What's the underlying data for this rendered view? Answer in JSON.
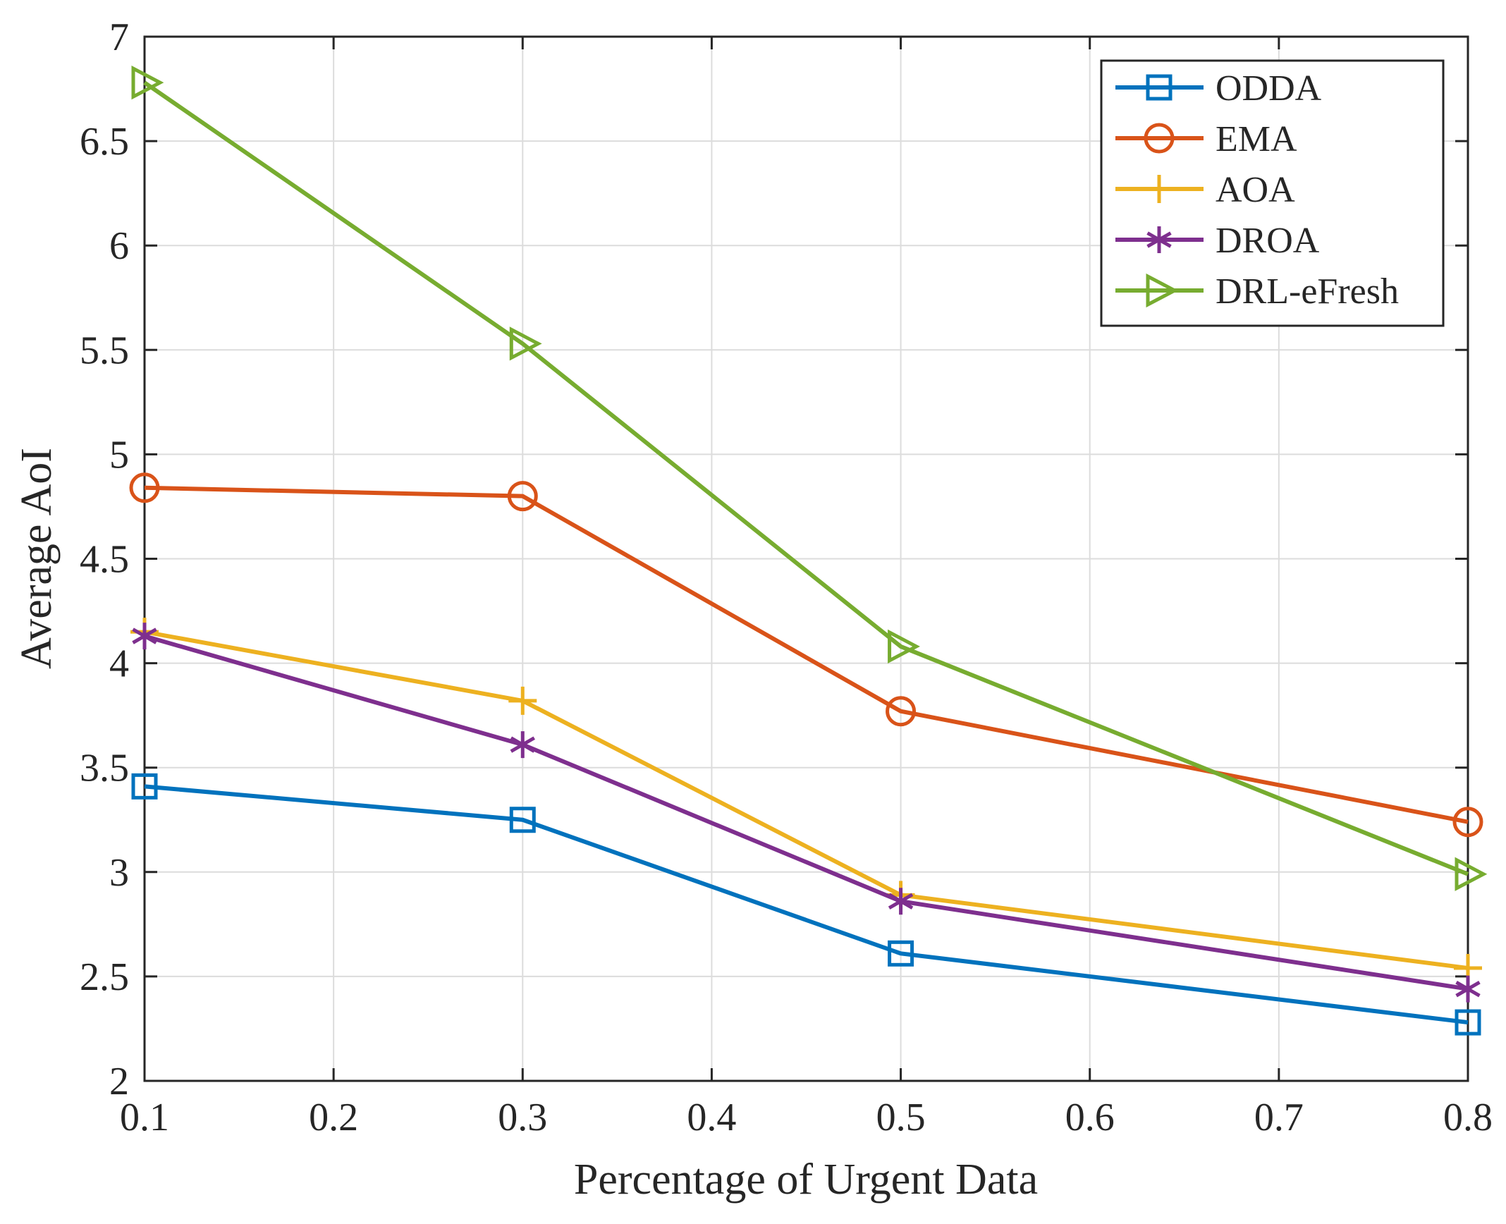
{
  "chart_data": {
    "type": "line",
    "title": "",
    "xlabel": "Percentage of Urgent Data",
    "ylabel": "Average AoI",
    "xlim": [
      0.1,
      0.8
    ],
    "ylim": [
      2,
      7
    ],
    "x_ticks": [
      "0.1",
      "0.2",
      "0.3",
      "0.4",
      "0.5",
      "0.6",
      "0.7",
      "0.8"
    ],
    "y_ticks": [
      "2",
      "2.5",
      "3",
      "3.5",
      "4",
      "4.5",
      "5",
      "5.5",
      "6",
      "6.5",
      "7"
    ],
    "grid": true,
    "legend_position": "top-right",
    "x": [
      0.1,
      0.3,
      0.5,
      0.8
    ],
    "series": [
      {
        "name": "ODDA",
        "color": "#0072BD",
        "marker": "square",
        "values": [
          3.41,
          3.25,
          2.61,
          2.28
        ]
      },
      {
        "name": "EMA",
        "color": "#D95319",
        "marker": "circle",
        "values": [
          4.84,
          4.8,
          3.77,
          3.24
        ]
      },
      {
        "name": "AOA",
        "color": "#EDB120",
        "marker": "plus",
        "values": [
          4.15,
          3.82,
          2.89,
          2.54
        ]
      },
      {
        "name": "DROA",
        "color": "#7E2F8E",
        "marker": "asterisk",
        "values": [
          4.13,
          3.61,
          2.86,
          2.44
        ]
      },
      {
        "name": "DRL-eFresh",
        "color": "#77AC30",
        "marker": "triangle-right",
        "values": [
          6.78,
          5.53,
          4.08,
          2.99
        ]
      }
    ]
  }
}
